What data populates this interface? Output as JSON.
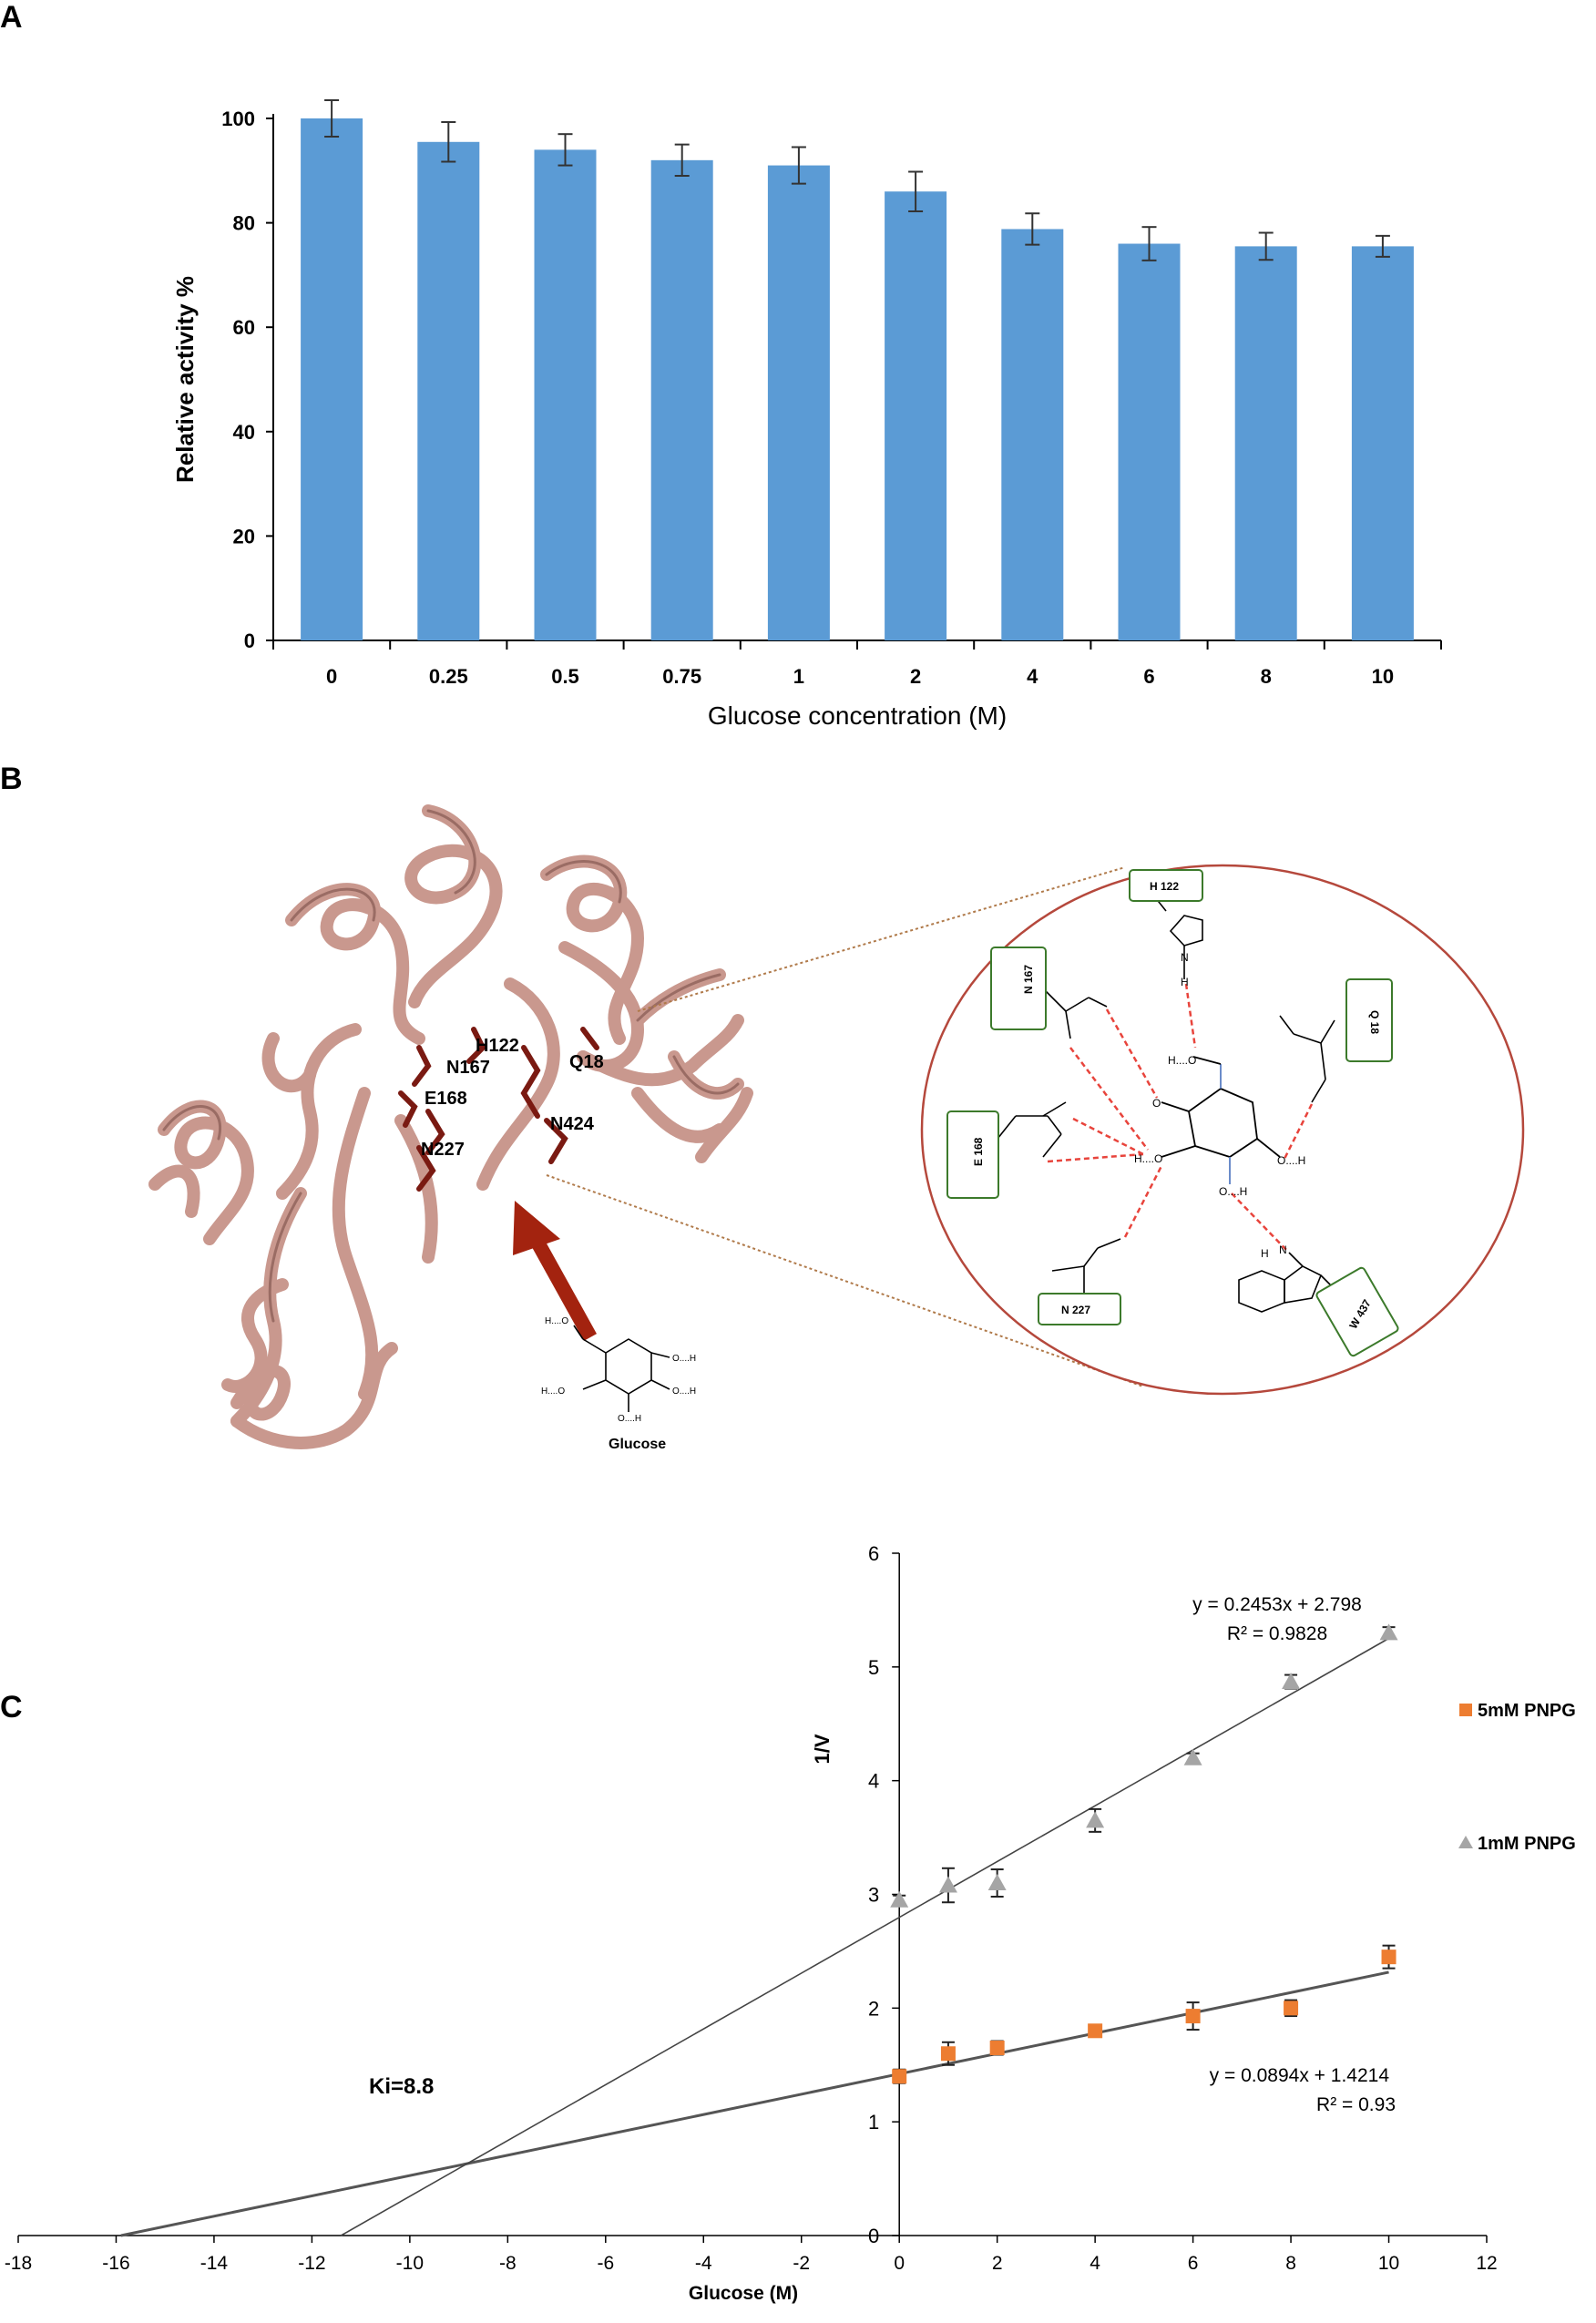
{
  "panels": {
    "a": "A",
    "b": "B",
    "c": "C"
  },
  "chart_data": [
    {
      "type": "bar",
      "panel": "A",
      "categories": [
        "0",
        "0.25",
        "0.5",
        "0.75",
        "1",
        "2",
        "4",
        "6",
        "8",
        "10"
      ],
      "values": [
        100,
        95.5,
        94,
        92,
        91,
        86,
        78.8,
        76,
        75.5,
        75.5
      ],
      "errors": [
        3.5,
        3.8,
        3,
        3,
        3.5,
        3.8,
        3,
        3.2,
        2.6,
        2
      ],
      "ylabel": "Relative activity %",
      "xlabel": "Glucose concentration (M)",
      "ylim": [
        0,
        100
      ],
      "yticks": [
        0,
        20,
        40,
        60,
        80,
        100
      ],
      "grid": false,
      "bar_color": "#5b9bd5"
    },
    {
      "type": "scatter",
      "panel": "C",
      "xlabel": "Glucose (M)",
      "ylabel": "1/V",
      "xlim": [
        -18,
        12
      ],
      "ylim": [
        0,
        6
      ],
      "xticks": [
        -18,
        -16,
        -14,
        -12,
        -10,
        -8,
        -6,
        -4,
        -2,
        0,
        2,
        4,
        6,
        8,
        10,
        12
      ],
      "yticks": [
        0,
        1,
        2,
        3,
        4,
        5,
        6
      ],
      "legend_position": "right",
      "series": [
        {
          "name": "5mM PNPG",
          "marker": "square",
          "color": "#ed7d31",
          "x": [
            0,
            1,
            2,
            4,
            6,
            8,
            10
          ],
          "y": [
            1.4,
            1.6,
            1.65,
            1.8,
            1.93,
            2.0,
            2.45
          ],
          "err": [
            0.06,
            0.1,
            0.06,
            0.03,
            0.12,
            0.07,
            0.1
          ],
          "equation": "y = 0.0894x + 1.4214",
          "r2": "R² = 0.93",
          "fit": {
            "slope": 0.0894,
            "intercept": 1.4214
          }
        },
        {
          "name": "1mM PNPG",
          "marker": "triangle",
          "color": "#a5a5a5",
          "x": [
            0,
            1,
            2,
            4,
            6,
            8,
            10
          ],
          "y": [
            2.95,
            3.08,
            3.1,
            3.65,
            4.2,
            4.87,
            5.3
          ],
          "err": [
            0.04,
            0.15,
            0.12,
            0.1,
            0.04,
            0.06,
            0.05
          ],
          "equation": "y = 0.2453x + 2.798",
          "r2": "R² = 0.9828",
          "fit": {
            "slope": 0.2453,
            "intercept": 2.798
          }
        }
      ],
      "annotation": "Ki=8.8"
    }
  ],
  "diagram": {
    "protein_labels": [
      "H122",
      "N167",
      "Q18",
      "E168",
      "N424",
      "N227"
    ],
    "glucose_caption": "Glucose",
    "glucose_atoms": [
      "H....O",
      "O....H",
      "H....O",
      "O....H",
      "O....H"
    ],
    "residue_boxes": [
      "H 122",
      "N 167",
      "Q 18",
      "E 168",
      "N 227",
      "W 437"
    ],
    "inset_atoms": {
      "ho_top": "H....O",
      "o_left1": "O",
      "ho_mid": "H....O",
      "o_right": "O....H",
      "o_bottom": "O....H",
      "n_h122": "N",
      "h_h122": "H",
      "n_trp": "N",
      "h_trp": "H"
    },
    "colors": {
      "ribbon": "#c9988e",
      "ribbon_dark": "#9a6c64",
      "residue": "#7a1a12",
      "arrow": "#a3230f",
      "circle": "#b5483c",
      "box": "#3c7a2b",
      "hbond": "#e8443c"
    }
  }
}
